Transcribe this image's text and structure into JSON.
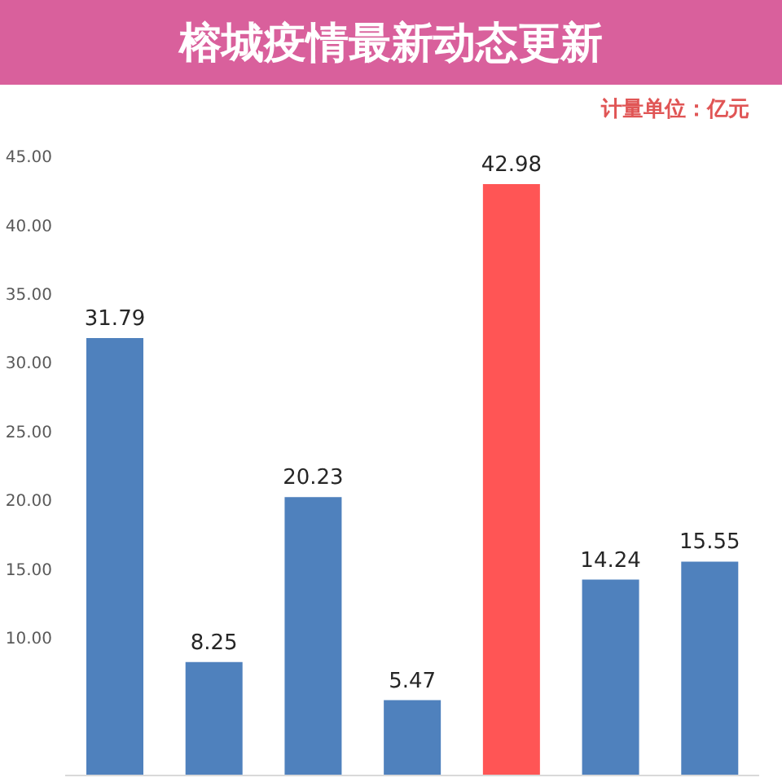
{
  "chart_data": {
    "type": "bar",
    "title": "榕城疫情最新动态更新",
    "annotations": [
      "计量单位：亿元"
    ],
    "categories": [
      null,
      null,
      null,
      null,
      null,
      null,
      null
    ],
    "values": [
      31.79,
      8.25,
      20.23,
      5.47,
      42.98,
      14.24,
      15.55
    ],
    "colors": [
      "#4f81bd",
      "#4f81bd",
      "#4f81bd",
      "#4f81bd",
      "#ff5555",
      "#4f81bd",
      "#4f81bd"
    ],
    "ylim": [
      0,
      45
    ],
    "yticks": [
      {
        "value": 10,
        "label": "10.00"
      },
      {
        "value": 15,
        "label": "15.00"
      },
      {
        "value": 20,
        "label": "20.00"
      },
      {
        "value": 25,
        "label": "25.00"
      },
      {
        "value": 30,
        "label": "30.00"
      },
      {
        "value": 35,
        "label": "35.00"
      },
      {
        "value": 40,
        "label": "40.00"
      },
      {
        "value": 45,
        "label": "45.00"
      }
    ],
    "data_labels": true,
    "tick_labels": "y"
  }
}
